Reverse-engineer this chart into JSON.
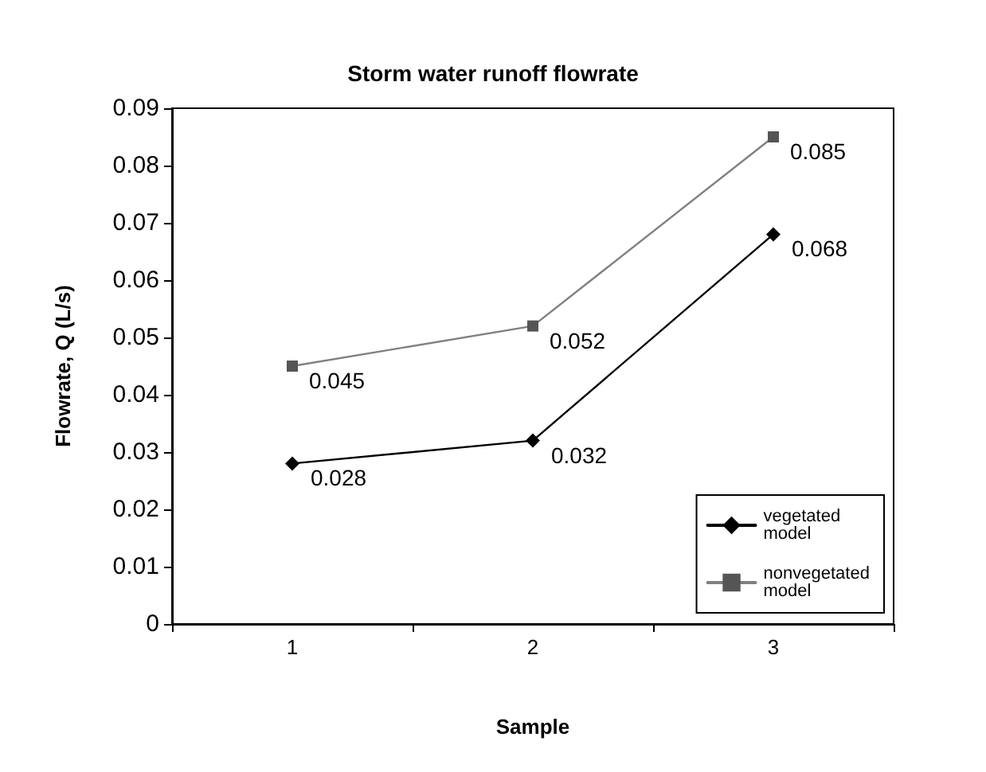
{
  "chart_data": {
    "type": "line",
    "title": "Storm water runoff flowrate",
    "xlabel": "Sample",
    "ylabel": "Flowrate, Q (L/s)",
    "categories": [
      "1",
      "2",
      "3"
    ],
    "series": [
      {
        "name": "vegetated model",
        "color": "#000000",
        "marker": "diamond",
        "values": [
          0.028,
          0.032,
          0.068
        ]
      },
      {
        "name": "nonvegetated model",
        "color": "#808080",
        "marker": "square",
        "values": [
          0.045,
          0.052,
          0.085
        ]
      }
    ],
    "ylim": [
      0,
      0.09
    ],
    "yticks": [
      0,
      0.01,
      0.02,
      0.03,
      0.04,
      0.05,
      0.06,
      0.07,
      0.08,
      0.09
    ],
    "grid": false,
    "legend": "bottom right",
    "data_labels": true,
    "line_style": "solid"
  }
}
